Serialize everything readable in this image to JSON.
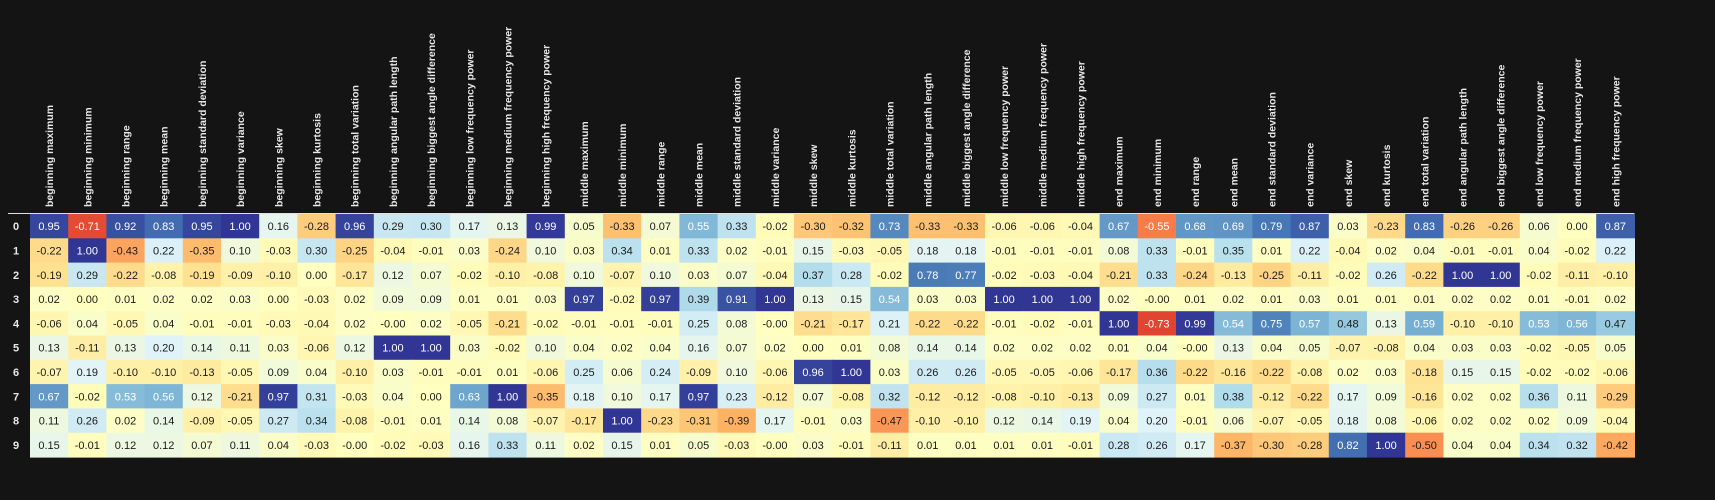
{
  "chart_data": {
    "type": "heatmap",
    "title": "",
    "color_scale": "RdYlBu",
    "value_range": [
      -1,
      1
    ],
    "columns": [
      "beginning maximum",
      "beginning minimum",
      "beginning range",
      "beginning mean",
      "beginning standard deviation",
      "beginning variance",
      "beginning skew",
      "beginning kurtosis",
      "beginning total variation",
      "beginning angular path length",
      "beginning biggest angle difference",
      "beginning low frequency power",
      "beginning medium frequency power",
      "beginning high frequency power",
      "middle maximum",
      "middle minimum",
      "middle range",
      "middle mean",
      "middle standard deviation",
      "middle variance",
      "middle skew",
      "middle kurtosis",
      "middle total variation",
      "middle angular path length",
      "middle biggest angle difference",
      "middle low frequency power",
      "middle medium frequency power",
      "middle high frequency power",
      "end maximum",
      "end minimum",
      "end range",
      "end mean",
      "end standard deviation",
      "end variance",
      "end skew",
      "end kurtosis",
      "end total variation",
      "end angular path length",
      "end biggest angle difference",
      "end low frequency power",
      "end medium frequency power",
      "end high frequency power"
    ],
    "rows": [
      "0",
      "1",
      "2",
      "3",
      "4",
      "5",
      "6",
      "7",
      "8",
      "9"
    ],
    "values": [
      [
        "0.95",
        "-0.71",
        "0.92",
        "0.83",
        "0.95",
        "1.00",
        "0.16",
        "-0.28",
        "0.96",
        "0.29",
        "0.30",
        "0.17",
        "0.13",
        "0.99",
        "0.05",
        "-0.33",
        "0.07",
        "0.55",
        "0.33",
        "-0.02",
        "-0.30",
        "-0.32",
        "0.73",
        "-0.33",
        "-0.33",
        "-0.06",
        "-0.06",
        "-0.04",
        "0.67",
        "-0.55",
        "0.68",
        "0.69",
        "0.79",
        "0.87",
        "0.03",
        "-0.23",
        "0.83",
        "-0.26",
        "-0.26",
        "0.06",
        "0.00",
        "0.87"
      ],
      [
        "-0.22",
        "1.00",
        "-0.43",
        "0.22",
        "-0.35",
        "0.10",
        "-0.03",
        "0.30",
        "-0.25",
        "-0.04",
        "-0.01",
        "0.03",
        "-0.24",
        "0.10",
        "0.03",
        "0.34",
        "0.01",
        "0.33",
        "0.02",
        "-0.01",
        "0.15",
        "-0.03",
        "-0.05",
        "0.18",
        "0.18",
        "-0.01",
        "-0.01",
        "-0.01",
        "0.08",
        "0.33",
        "-0.01",
        "0.35",
        "0.01",
        "0.22",
        "-0.04",
        "0.02",
        "0.04",
        "-0.01",
        "-0.01",
        "0.04",
        "-0.02",
        "0.22"
      ],
      [
        "-0.19",
        "0.29",
        "-0.22",
        "-0.08",
        "-0.19",
        "-0.09",
        "-0.10",
        "0.00",
        "-0.17",
        "0.12",
        "0.07",
        "-0.02",
        "-0.10",
        "-0.08",
        "0.10",
        "-0.07",
        "0.10",
        "0.03",
        "0.07",
        "-0.04",
        "0.37",
        "0.28",
        "-0.02",
        "0.78",
        "0.77",
        "-0.02",
        "-0.03",
        "-0.04",
        "-0.21",
        "0.33",
        "-0.24",
        "-0.13",
        "-0.25",
        "-0.11",
        "-0.02",
        "0.26",
        "-0.22",
        "1.00",
        "1.00",
        "-0.02",
        "-0.11",
        "-0.10"
      ],
      [
        "0.02",
        "0.00",
        "0.01",
        "0.02",
        "0.02",
        "0.03",
        "0.00",
        "-0.03",
        "0.02",
        "0.09",
        "0.09",
        "0.01",
        "0.01",
        "0.03",
        "0.97",
        "-0.02",
        "0.97",
        "0.39",
        "0.91",
        "1.00",
        "0.13",
        "0.15",
        "0.54",
        "0.03",
        "0.03",
        "1.00",
        "1.00",
        "1.00",
        "0.02",
        "-0.00",
        "0.01",
        "0.02",
        "0.01",
        "0.03",
        "0.01",
        "0.01",
        "0.01",
        "0.02",
        "0.02",
        "0.01",
        "-0.01",
        "0.02"
      ],
      [
        "-0.06",
        "0.04",
        "-0.05",
        "0.04",
        "-0.01",
        "-0.01",
        "-0.03",
        "-0.04",
        "0.02",
        "-0.00",
        "0.02",
        "-0.05",
        "-0.21",
        "-0.02",
        "-0.01",
        "-0.01",
        "-0.01",
        "0.25",
        "0.08",
        "-0.00",
        "-0.21",
        "-0.17",
        "0.21",
        "-0.22",
        "-0.22",
        "-0.01",
        "-0.02",
        "-0.01",
        "1.00",
        "-0.73",
        "0.99",
        "0.54",
        "0.75",
        "0.57",
        "0.48",
        "0.13",
        "0.59",
        "-0.10",
        "-0.10",
        "0.53",
        "0.56",
        "0.47"
      ],
      [
        "0.13",
        "-0.11",
        "0.13",
        "0.20",
        "0.14",
        "0.11",
        "0.03",
        "-0.06",
        "0.12",
        "1.00",
        "1.00",
        "0.03",
        "-0.02",
        "0.10",
        "0.04",
        "0.02",
        "0.04",
        "0.16",
        "0.07",
        "0.02",
        "0.00",
        "0.01",
        "0.08",
        "0.14",
        "0.14",
        "0.02",
        "0.02",
        "0.02",
        "0.01",
        "0.04",
        "-0.00",
        "0.13",
        "0.04",
        "0.05",
        "-0.07",
        "-0.08",
        "0.04",
        "0.03",
        "0.03",
        "-0.02",
        "-0.05",
        "0.05"
      ],
      [
        "-0.07",
        "0.19",
        "-0.10",
        "-0.10",
        "-0.13",
        "-0.05",
        "0.09",
        "0.04",
        "-0.10",
        "0.03",
        "-0.01",
        "-0.01",
        "0.01",
        "-0.06",
        "0.25",
        "0.06",
        "0.24",
        "-0.09",
        "0.10",
        "-0.06",
        "0.96",
        "1.00",
        "0.03",
        "0.26",
        "0.26",
        "-0.05",
        "-0.05",
        "-0.06",
        "-0.17",
        "0.36",
        "-0.22",
        "-0.16",
        "-0.22",
        "-0.08",
        "0.02",
        "0.03",
        "-0.18",
        "0.15",
        "0.15",
        "-0.02",
        "-0.02",
        "-0.06"
      ],
      [
        "0.67",
        "-0.02",
        "0.53",
        "0.56",
        "0.12",
        "-0.21",
        "0.97",
        "0.31",
        "-0.03",
        "0.04",
        "0.00",
        "0.63",
        "1.00",
        "-0.35",
        "0.18",
        "0.10",
        "0.17",
        "0.97",
        "0.23",
        "-0.12",
        "0.07",
        "-0.08",
        "0.32",
        "-0.12",
        "-0.12",
        "-0.08",
        "-0.10",
        "-0.13",
        "0.09",
        "0.27",
        "0.01",
        "0.38",
        "-0.12",
        "-0.22",
        "0.17",
        "0.09",
        "-0.16",
        "0.02",
        "0.02",
        "0.36",
        "0.11",
        "-0.29"
      ],
      [
        "0.11",
        "0.26",
        "0.02",
        "0.14",
        "-0.09",
        "-0.05",
        "0.27",
        "0.34",
        "-0.08",
        "-0.01",
        "0.01",
        "0.14",
        "0.08",
        "-0.07",
        "-0.17",
        "1.00",
        "-0.23",
        "-0.31",
        "-0.39",
        "0.17",
        "-0.01",
        "0.03",
        "-0.47",
        "-0.10",
        "-0.10",
        "0.12",
        "0.14",
        "0.19",
        "0.04",
        "0.20",
        "-0.01",
        "0.06",
        "-0.07",
        "-0.05",
        "0.18",
        "0.08",
        "-0.06",
        "0.02",
        "0.02",
        "0.02",
        "0.09",
        "-0.04"
      ],
      [
        "0.15",
        "-0.01",
        "0.12",
        "0.12",
        "0.07",
        "0.11",
        "0.04",
        "-0.03",
        "-0.00",
        "-0.02",
        "-0.03",
        "0.16",
        "0.33",
        "0.11",
        "0.02",
        "0.15",
        "0.01",
        "0.05",
        "-0.03",
        "-0.00",
        "0.03",
        "-0.01",
        "-0.11",
        "0.01",
        "0.01",
        "0.01",
        "0.01",
        "-0.01",
        "0.28",
        "0.26",
        "0.17",
        "-0.37",
        "-0.30",
        "-0.28",
        "0.82",
        "1.00",
        "-0.50",
        "0.04",
        "0.04",
        "0.34",
        "0.32",
        "-0.42"
      ]
    ]
  }
}
